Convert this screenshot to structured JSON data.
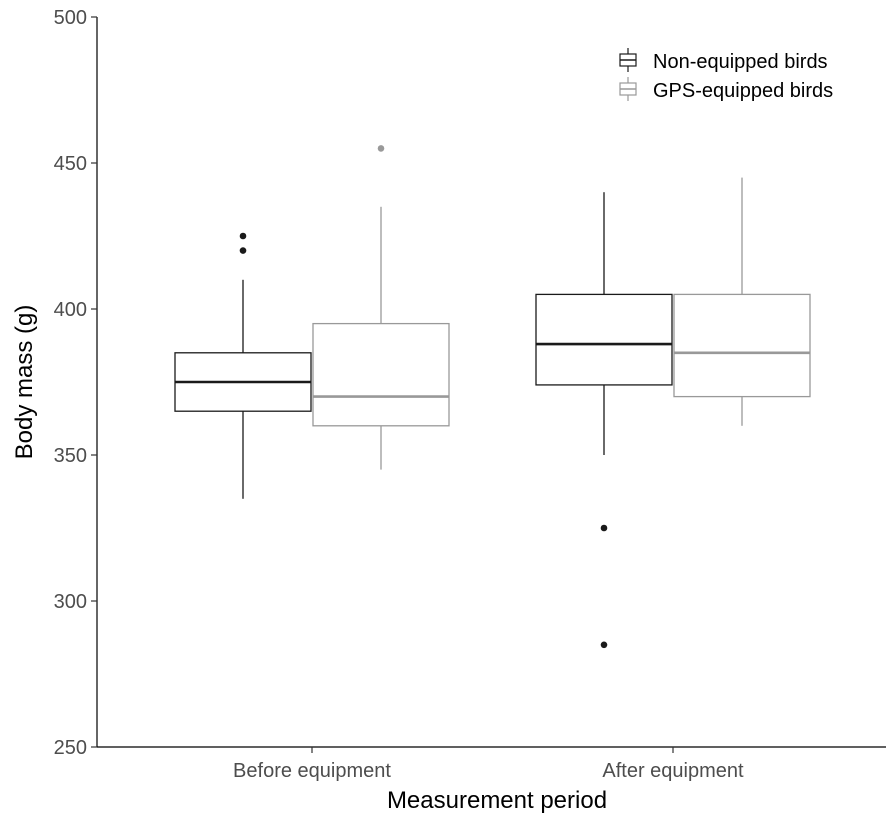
{
  "chart_data": {
    "type": "boxplot",
    "xlabel": "Measurement period",
    "ylabel": "Body mass (g)",
    "ylim": [
      250,
      500
    ],
    "yticks": [
      250,
      300,
      350,
      400,
      450,
      500
    ],
    "categories": [
      "Before equipment",
      "After equipment"
    ],
    "grid": false,
    "legend_position": "top-right",
    "series": [
      {
        "name": "Non-equipped birds",
        "color": "#1a1a1a",
        "boxes": [
          {
            "whisker_low": 335,
            "q1": 365,
            "median": 375,
            "q3": 385,
            "whisker_high": 410,
            "outliers": [
              420,
              425
            ]
          },
          {
            "whisker_low": 350,
            "q1": 374,
            "median": 388,
            "q3": 405,
            "whisker_high": 440,
            "outliers": [
              325,
              285
            ]
          }
        ]
      },
      {
        "name": "GPS-equipped birds",
        "color": "#999999",
        "boxes": [
          {
            "whisker_low": 345,
            "q1": 360,
            "median": 370,
            "q3": 395,
            "whisker_high": 435,
            "outliers": [
              455
            ]
          },
          {
            "whisker_low": 360,
            "q1": 370,
            "median": 385,
            "q3": 405,
            "whisker_high": 445,
            "outliers": []
          }
        ]
      }
    ]
  }
}
